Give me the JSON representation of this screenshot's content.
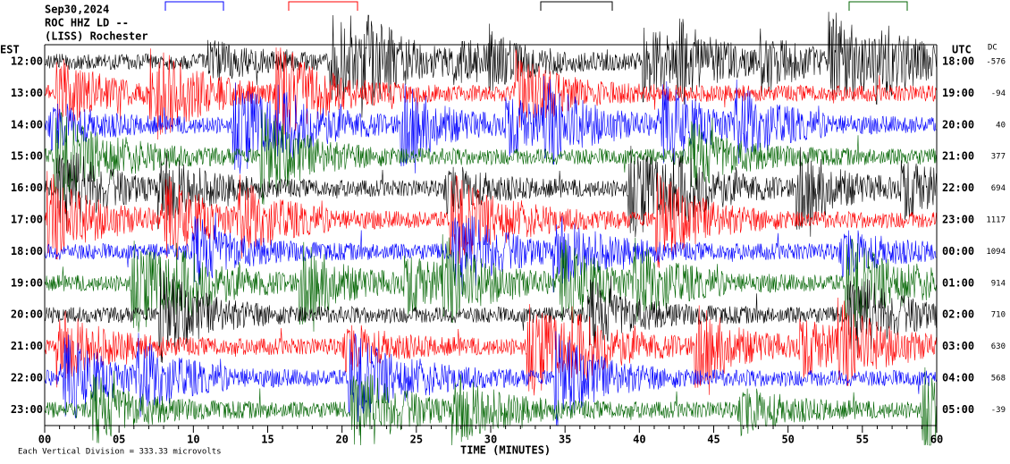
{
  "header": {
    "date": "Sep30,2024",
    "station": "ROC HHZ LD --",
    "location": "(LISS) Rochester"
  },
  "left_axis": {
    "title": "EST",
    "labels": [
      "12:00",
      "13:00",
      "14:00",
      "15:00",
      "16:00",
      "17:00",
      "18:00",
      "19:00",
      "20:00",
      "21:00",
      "22:00",
      "23:00"
    ]
  },
  "right_axis": {
    "title": "UTC",
    "labels": [
      "18:00",
      "19:00",
      "20:00",
      "21:00",
      "22:00",
      "23:00",
      "00:00",
      "01:00",
      "02:00",
      "03:00",
      "04:00",
      "05:00"
    ]
  },
  "dc": {
    "title": "DC",
    "values": [
      "-576",
      "-94",
      "40",
      "377",
      "694",
      "1117",
      "1094",
      "914",
      "710",
      "630",
      "568",
      "-39"
    ]
  },
  "x_axis": {
    "title": "TIME (MINUTES)",
    "ticks": [
      "00",
      "05",
      "10",
      "15",
      "20",
      "25",
      "30",
      "35",
      "40",
      "45",
      "50",
      "55",
      "60"
    ]
  },
  "footer": "Each Vertical Division =  333.33 microvolts",
  "trace_colors": [
    "#000000",
    "#ff0000",
    "#0000ff",
    "#006400"
  ]
}
